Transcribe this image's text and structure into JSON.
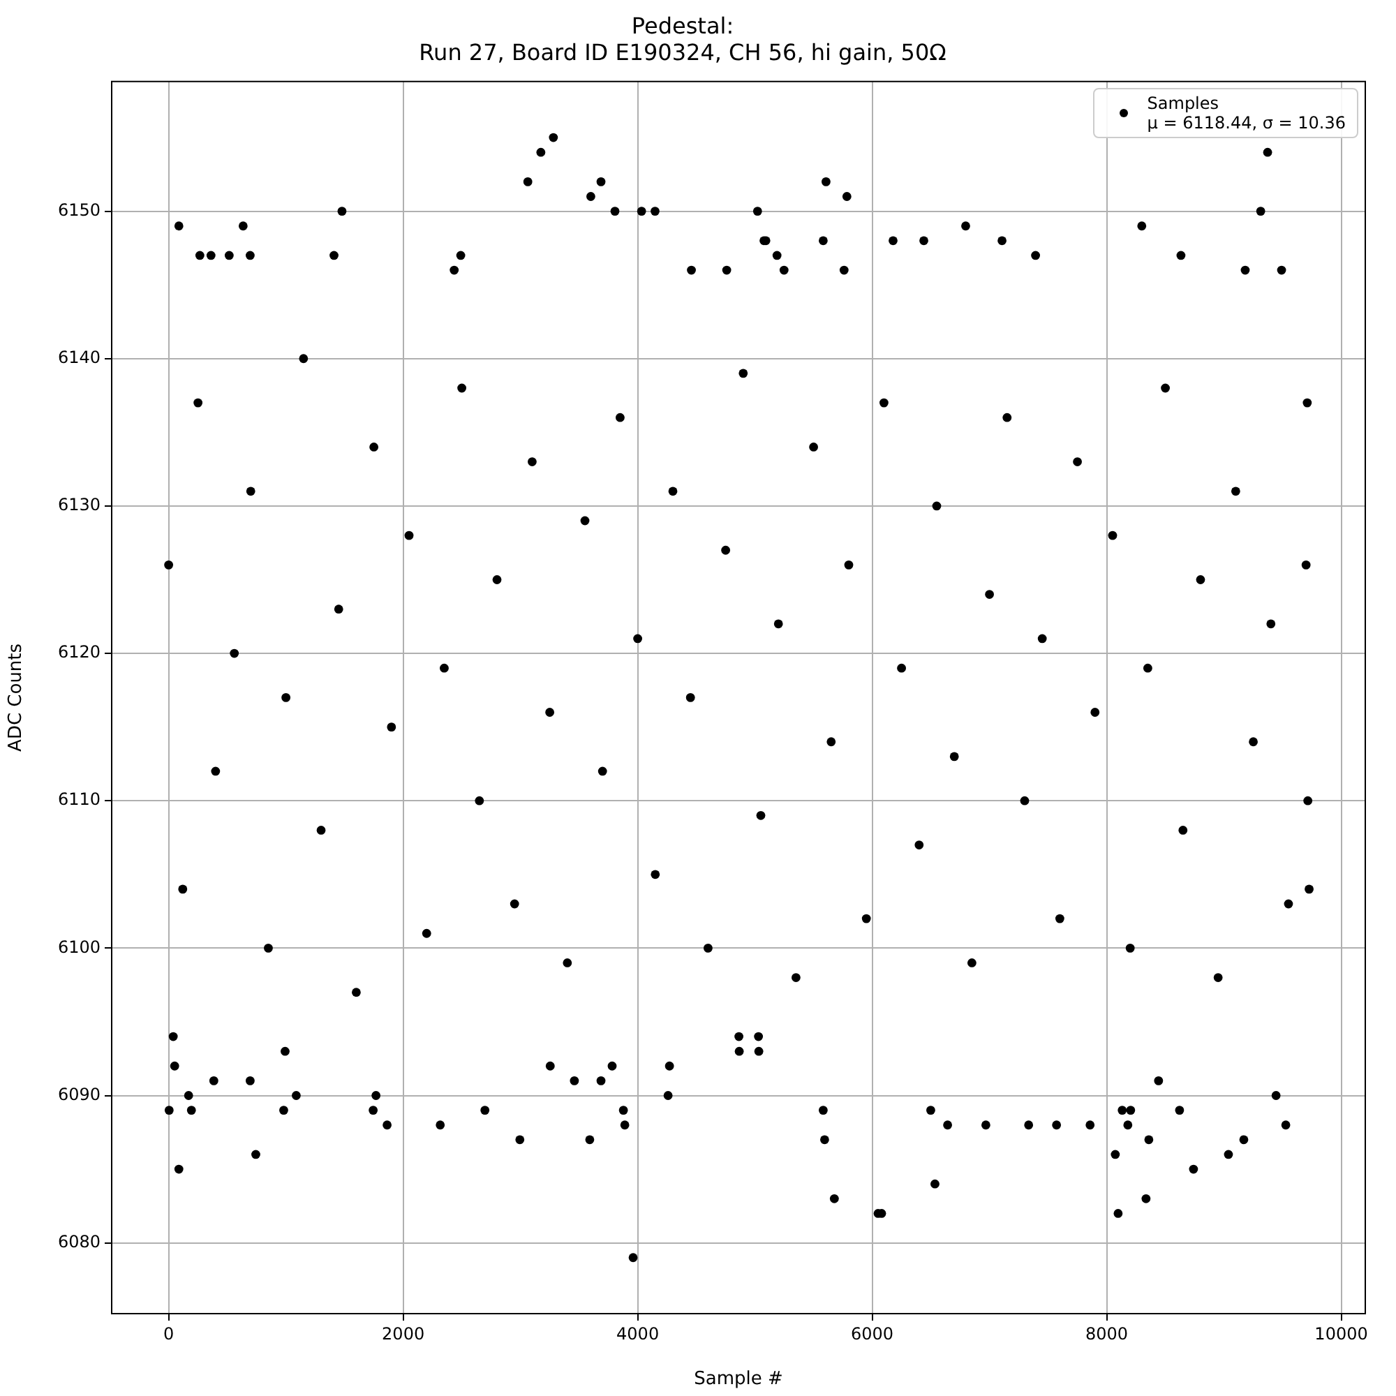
{
  "chart_data": {
    "type": "scatter",
    "title": "Pedestal:\nRun 27, Board ID E190324, CH 56, hi gain, 50Ω",
    "xlabel": "Sample #",
    "ylabel": "ADC Counts",
    "xlim": [
      -486,
      10205
    ],
    "ylim": [
      6075.2,
      6158.8
    ],
    "xticks": [
      0,
      2000,
      4000,
      6000,
      8000,
      10000
    ],
    "yticks": [
      6080,
      6090,
      6100,
      6110,
      6120,
      6130,
      6140,
      6150
    ],
    "grid": true,
    "legend": "top right",
    "marker": "circle",
    "series": [
      {
        "name": "Samples\nμ = 6118.44, σ = 10.36",
        "color": "#000000",
        "x": [
          4,
          39,
          51,
          87,
          87,
          170,
          194,
          266,
          361,
          385,
          516,
          635,
          695,
          695,
          743,
          981,
          993,
          1088,
          1410,
          1478,
          1744,
          1768,
          1863,
          2316,
          2435,
          2491,
          2697,
          2995,
          3063,
          3174,
          3254,
          3281,
          3460,
          3591,
          3600,
          3687,
          3687,
          3782,
          3806,
          3878,
          3890,
          3961,
          4033,
          4148,
          4259,
          4271,
          4458,
          4759,
          4863,
          4866,
          5022,
          5030,
          5033,
          5077,
          5093,
          5188,
          5248,
          5582,
          5582,
          5594,
          5606,
          5677,
          5760,
          5784,
          6050,
          6080,
          6178,
          6440,
          6499,
          6535,
          6643,
          6797,
          6969,
          7107,
          7334,
          7393,
          7572,
          7858,
          8073,
          8097,
          8132,
          8180,
          8204,
          8299,
          8335,
          8359,
          8442,
          8621,
          8633,
          8740,
          9038,
          9169,
          9181,
          9313,
          9372,
          9444,
          9491,
          9527,
          9726,
          0,
          120,
          250,
          400,
          560,
          700,
          850,
          1000,
          1150,
          1300,
          1450,
          1600,
          1750,
          1900,
          2050,
          2200,
          2350,
          2500,
          2650,
          2800,
          2950,
          3100,
          3250,
          3400,
          3550,
          3700,
          3850,
          4000,
          4150,
          4300,
          4450,
          4600,
          4750,
          4900,
          5050,
          5200,
          5350,
          5500,
          5650,
          5800,
          5950,
          6100,
          6250,
          6400,
          6550,
          6700,
          6850,
          7000,
          7150,
          7300,
          7450,
          7600,
          7750,
          7900,
          8050,
          8200,
          8350,
          8500,
          8650,
          8800,
          8950,
          9100,
          9250,
          9400,
          9550,
          9700,
          9710,
          9715
        ],
        "values": [
          6089,
          6094,
          6092,
          6085,
          6149,
          6090,
          6089,
          6147,
          6147,
          6091,
          6147,
          6149,
          6147,
          6091,
          6086,
          6089,
          6093,
          6090,
          6147,
          6150,
          6089,
          6090,
          6088,
          6088,
          6146,
          6147,
          6089,
          6087,
          6152,
          6154,
          6092,
          6155,
          6091,
          6087,
          6151,
          6152,
          6091,
          6092,
          6150,
          6089,
          6088,
          6079,
          6150,
          6150,
          6090,
          6092,
          6146,
          6146,
          6094,
          6093,
          6150,
          6094,
          6093,
          6148,
          6148,
          6147,
          6146,
          6148,
          6089,
          6087,
          6152,
          6083,
          6146,
          6151,
          6082,
          6082,
          6148,
          6148,
          6089,
          6084,
          6088,
          6149,
          6088,
          6148,
          6088,
          6147,
          6088,
          6088,
          6086,
          6082,
          6089,
          6088,
          6089,
          6149,
          6083,
          6087,
          6091,
          6089,
          6147,
          6085,
          6086,
          6087,
          6146,
          6150,
          6154,
          6090,
          6146,
          6088,
          6104,
          6126,
          6104,
          6137,
          6112,
          6120,
          6131,
          6100,
          6117,
          6140,
          6108,
          6123,
          6097,
          6134,
          6115,
          6128,
          6101,
          6119,
          6138,
          6110,
          6125,
          6103,
          6133,
          6116,
          6099,
          6129,
          6112,
          6136,
          6121,
          6105,
          6131,
          6117,
          6100,
          6127,
          6139,
          6109,
          6122,
          6098,
          6134,
          6114,
          6126,
          6102,
          6137,
          6119,
          6107,
          6130,
          6113,
          6099,
          6124,
          6136,
          6110,
          6121,
          6102,
          6133,
          6116,
          6128,
          6100,
          6119,
          6138,
          6108,
          6125,
          6098,
          6131,
          6114,
          6122,
          6103,
          6126,
          6137,
          6110
        ]
      }
    ]
  }
}
